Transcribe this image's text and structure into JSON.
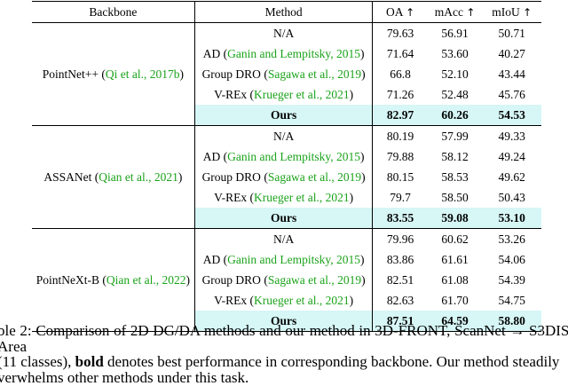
{
  "table": {
    "headers": {
      "backbone": "Backbone",
      "method": "Method",
      "oa": "OA",
      "macc": "mAcc",
      "miou": "mIoU",
      "arrow": "↑"
    },
    "groups": [
      {
        "backbone": "PointNet++",
        "backbone_cite": "Qi et al., 2017b",
        "rows": [
          {
            "method": "N/A",
            "cite": "",
            "oa": "79.63",
            "macc": "56.91",
            "miou": "50.71"
          },
          {
            "method": "AD",
            "cite": "Ganin and Lempitsky, 2015",
            "oa": "71.64",
            "macc": "53.60",
            "miou": "40.27"
          },
          {
            "method": "Group DRO",
            "cite": "Sagawa et al., 2019",
            "oa": "66.8",
            "macc": "52.10",
            "miou": "43.44"
          },
          {
            "method": "V-REx",
            "cite": "Krueger et al., 2021",
            "oa": "71.26",
            "macc": "52.48",
            "miou": "45.76"
          },
          {
            "method": "Ours",
            "cite": "",
            "oa": "82.97",
            "macc": "60.26",
            "miou": "54.53"
          }
        ]
      },
      {
        "backbone": "ASSANet",
        "backbone_cite": "Qian et al., 2021",
        "rows": [
          {
            "method": "N/A",
            "cite": "",
            "oa": "80.19",
            "macc": "57.99",
            "miou": "49.33"
          },
          {
            "method": "AD",
            "cite": "Ganin and Lempitsky, 2015",
            "oa": "79.88",
            "macc": "58.12",
            "miou": "49.24"
          },
          {
            "method": "Group DRO",
            "cite": "Sagawa et al., 2019",
            "oa": "80.15",
            "macc": "58.53",
            "miou": "49.62"
          },
          {
            "method": "V-REx",
            "cite": "Krueger et al., 2021",
            "oa": "79.7",
            "macc": "58.50",
            "miou": "50.43"
          },
          {
            "method": "Ours",
            "cite": "",
            "oa": "83.55",
            "macc": "59.08",
            "miou": "53.10"
          }
        ]
      },
      {
        "backbone": "PointNeXt-B",
        "backbone_cite": "Qian et al., 2022",
        "rows": [
          {
            "method": "N/A",
            "cite": "",
            "oa": "79.96",
            "macc": "60.62",
            "miou": "53.26"
          },
          {
            "method": "AD",
            "cite": "Ganin and Lempitsky, 2015",
            "oa": "83.86",
            "macc": "61.61",
            "miou": "54.06"
          },
          {
            "method": "Group DRO",
            "cite": "Sagawa et al., 2019",
            "oa": "82.51",
            "macc": "61.08",
            "miou": "54.39"
          },
          {
            "method": "V-REx",
            "cite": "Krueger et al., 2021",
            "oa": "82.63",
            "macc": "61.70",
            "miou": "54.75"
          },
          {
            "method": "Ours",
            "cite": "",
            "oa": "87.51",
            "macc": "64.59",
            "miou": "58.80"
          }
        ]
      }
    ]
  },
  "caption": {
    "line1": "ble 2: Comparison of 2D DG/DA methods and our method in 3D-FRONT, ScanNet → S3DIS-Area",
    "line2_pre": "(11 classes), ",
    "line2_bold": "bold",
    "line2_post": " denotes best performance in corresponding backbone. Our method steadily",
    "line3": "verwhelms other methods under this task."
  }
}
